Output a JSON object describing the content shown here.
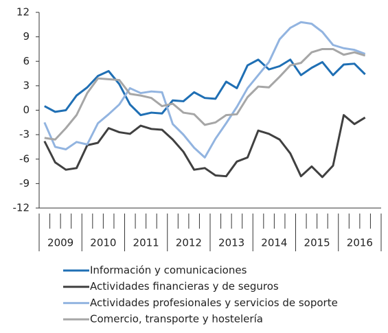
{
  "chart_data": {
    "type": "line",
    "years": [
      "2009",
      "2010",
      "2011",
      "2012",
      "2013",
      "2014",
      "2015",
      "2016"
    ],
    "ylim": [
      -12,
      12
    ],
    "yticks": [
      -12,
      -9,
      -6,
      -3,
      0,
      3,
      6,
      9,
      12
    ],
    "series": [
      {
        "name": "Información y comunicaciones",
        "color": "#1f6fb4",
        "values": [
          0.5,
          -0.2,
          0,
          1.8,
          2.8,
          4.2,
          4.8,
          3.2,
          0.7,
          -0.6,
          -0.3,
          -0.4,
          1.2,
          1.1,
          2.2,
          1.5,
          1.4,
          3.5,
          2.7,
          5.5,
          6.2,
          5.0,
          5.4,
          6.2,
          4.3,
          5.2,
          5.9,
          4.3,
          5.6,
          5.7,
          4.4
        ]
      },
      {
        "name": "Actividades financieras y de seguros",
        "color": "#404040",
        "values": [
          -3.8,
          -6.4,
          -7.3,
          -7.1,
          -4.3,
          -4.0,
          -2.2,
          -2.7,
          -2.9,
          -1.9,
          -2.3,
          -2.4,
          -3.6,
          -5.1,
          -7.3,
          -7.1,
          -8.0,
          -8.1,
          -6.3,
          -5.8,
          -2.5,
          -2.9,
          -3.6,
          -5.3,
          -8.1,
          -6.9,
          -8.2,
          -6.8,
          -0.6,
          -1.7,
          -0.9
        ]
      },
      {
        "name": "Actividades profesionales y servicios de soporte",
        "color": "#92b4e0",
        "values": [
          -1.5,
          -4.5,
          -4.8,
          -3.9,
          -4.2,
          -1.6,
          -0.5,
          0.7,
          2.7,
          2.1,
          2.3,
          2.2,
          -1.7,
          -3.0,
          -4.6,
          -5.8,
          -3.5,
          -1.6,
          0.4,
          2.7,
          4.3,
          5.9,
          8.7,
          10.1,
          10.8,
          10.6,
          9.6,
          8.0,
          7.6,
          7.4,
          6.9
        ]
      },
      {
        "name": "Comercio, transporte y hostelería",
        "color": "#a6a6a6",
        "values": [
          -3.4,
          -3.6,
          -2.2,
          -0.6,
          2.1,
          3.9,
          3.8,
          3.7,
          2.0,
          1.8,
          1.5,
          0.5,
          0.8,
          -0.3,
          -0.5,
          -1.8,
          -1.5,
          -0.6,
          -0.5,
          1.6,
          2.9,
          2.8,
          4.1,
          5.5,
          5.8,
          7.1,
          7.5,
          7.5,
          6.8,
          7.1,
          6.7
        ]
      }
    ]
  }
}
